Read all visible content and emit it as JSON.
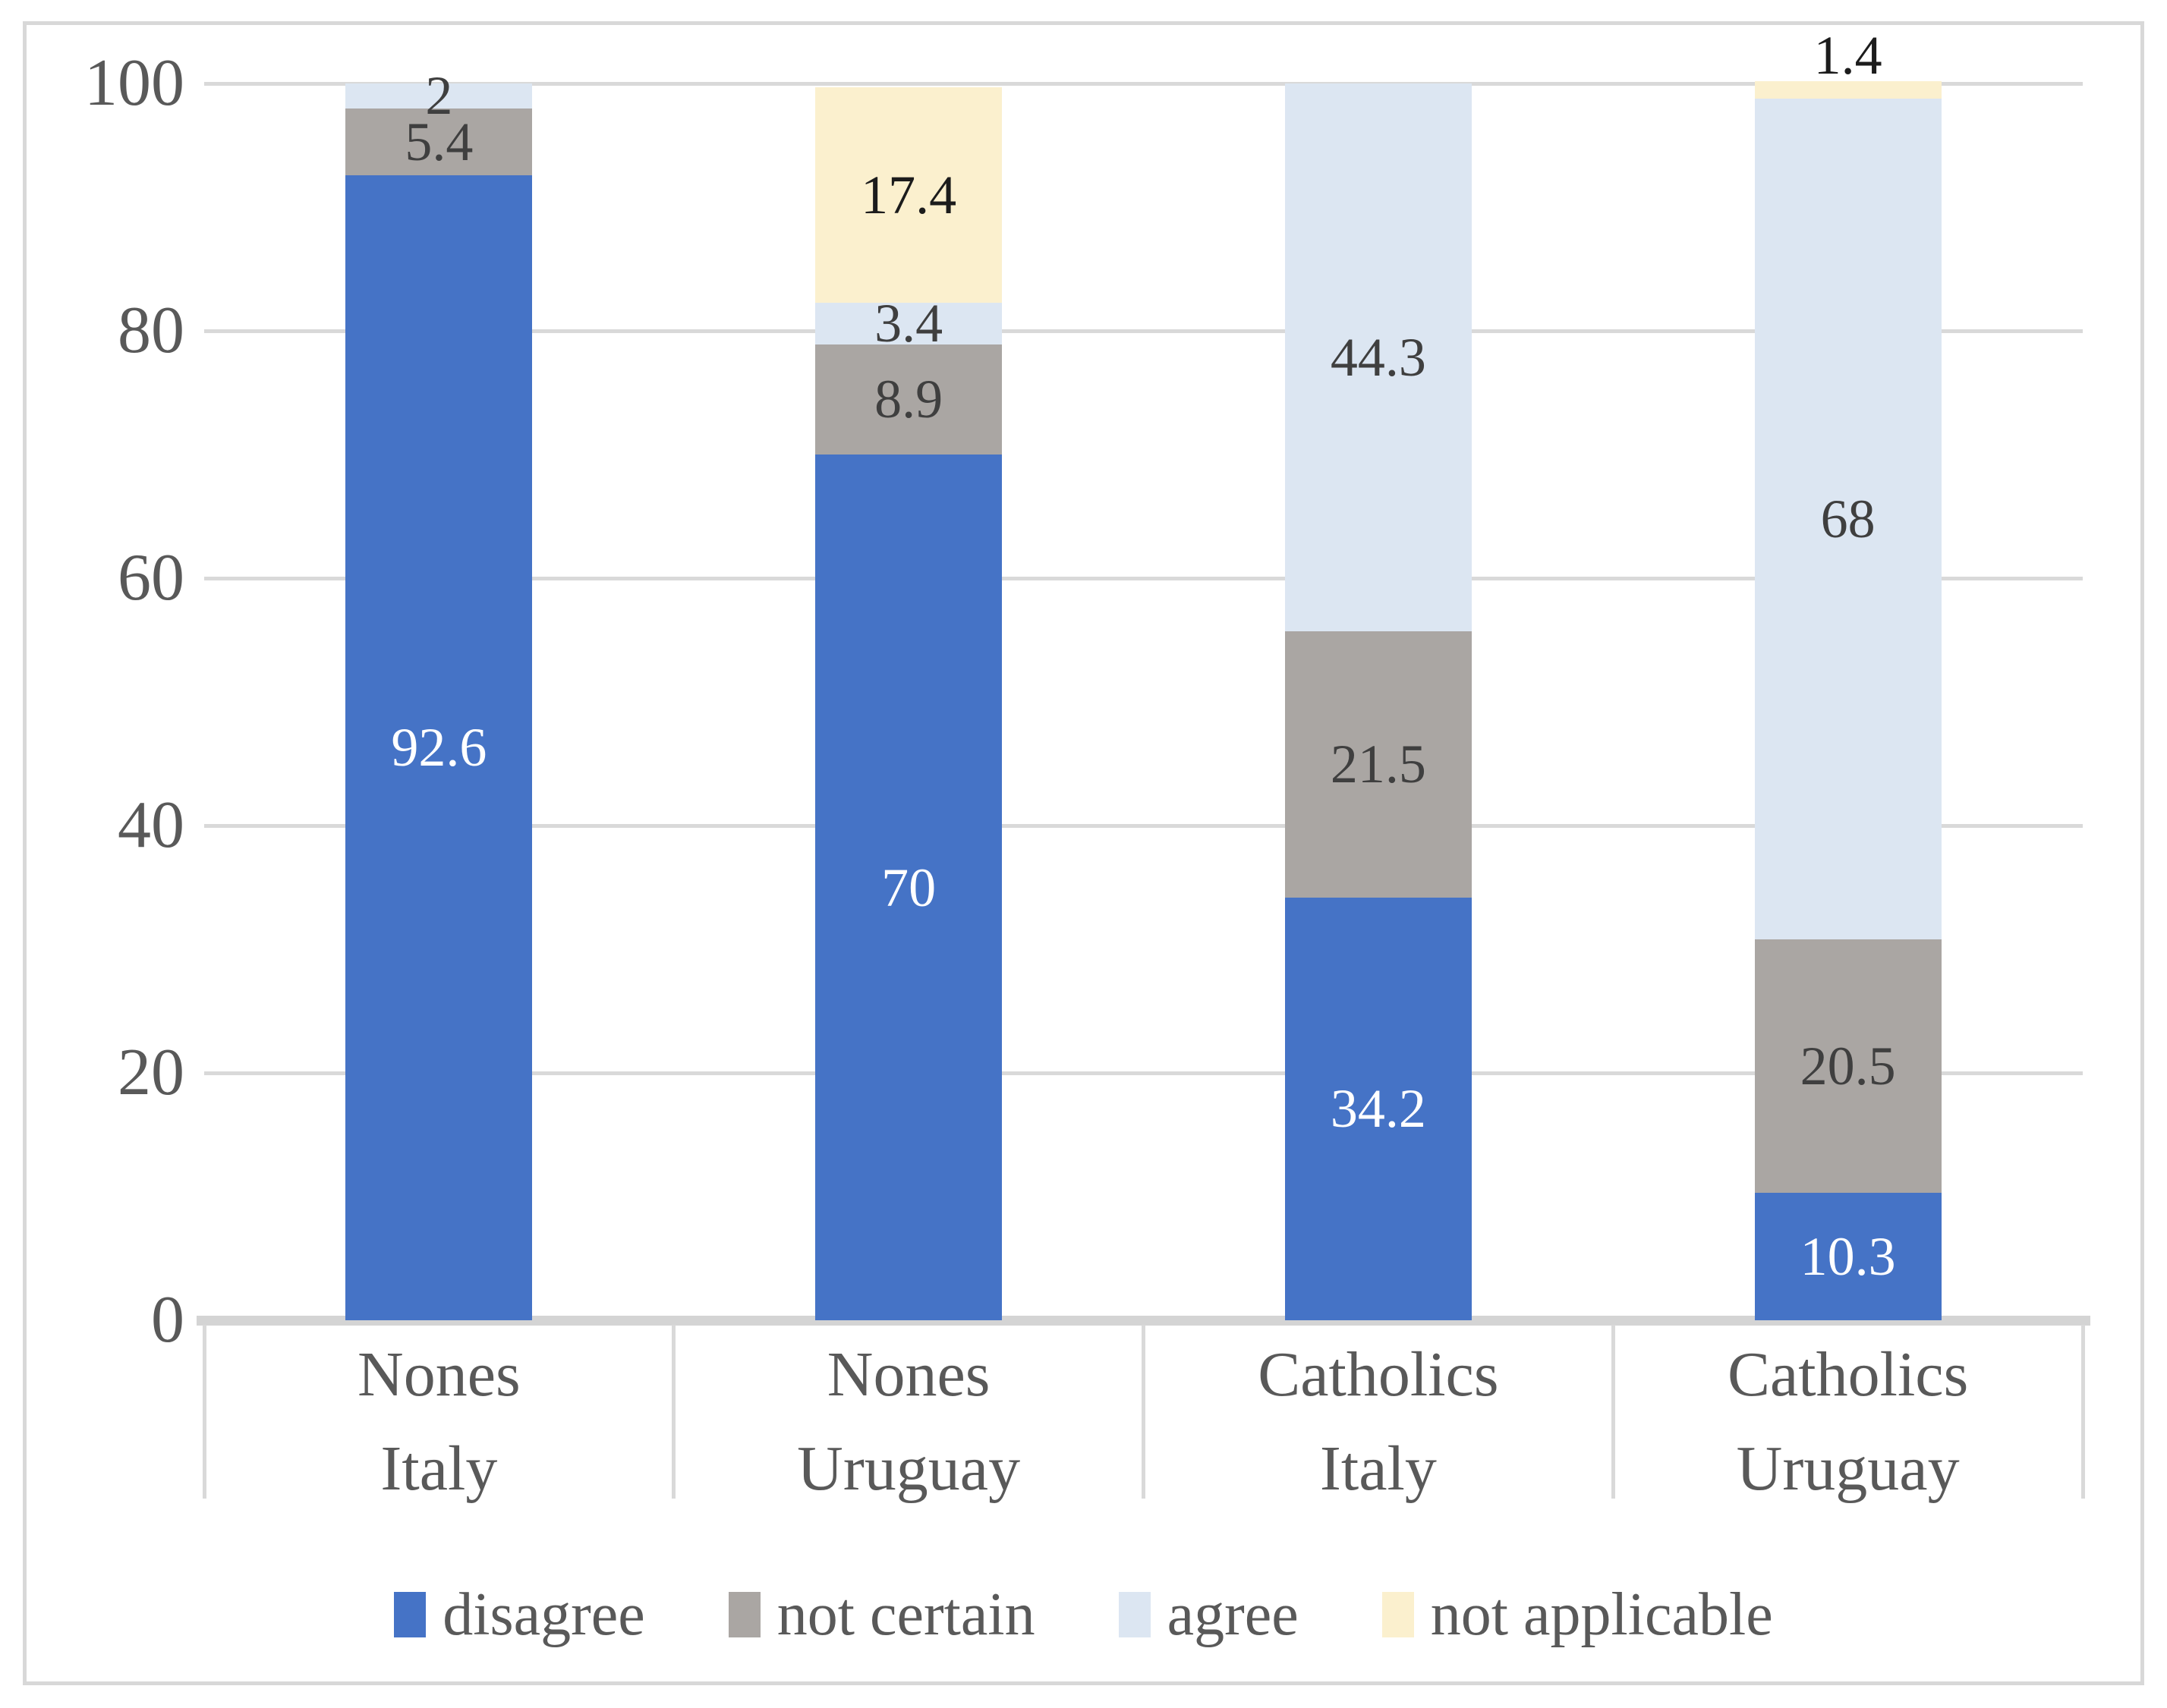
{
  "figure": {
    "background_color": "#FFFFFF",
    "border_color": "#D8D8D8",
    "grid_color": "#D9D9D9",
    "axis_text_color": "#595959"
  },
  "chart_data": {
    "type": "bar",
    "stacked": true,
    "orientation": "vertical",
    "title": "",
    "xlabel": "",
    "ylabel": "",
    "ylim": [
      0,
      100
    ],
    "yticks": [
      0,
      20,
      40,
      60,
      80,
      100
    ],
    "grid": true,
    "legend_position": "bottom",
    "categories": [
      {
        "group": "Nones",
        "country": "Italy"
      },
      {
        "group": "Nones",
        "country": "Uruguay"
      },
      {
        "group": "Catholics",
        "country": "Italy"
      },
      {
        "group": "Catholics",
        "country": "Uruguay"
      }
    ],
    "series": [
      {
        "name": "disagree",
        "color": "#4573C6",
        "label_color": "#FFFFFF",
        "values": [
          92.6,
          70,
          34.2,
          10.3
        ]
      },
      {
        "name": "not certain",
        "color": "#AAA6A3",
        "label_color": "#3F3F3F",
        "values": [
          5.4,
          8.9,
          21.5,
          20.5
        ]
      },
      {
        "name": "agree",
        "color": "#DCE6F2",
        "label_color": "#3F3F3F",
        "values": [
          2,
          3.4,
          44.3,
          68
        ]
      },
      {
        "name": "not applicable",
        "color": "#FBF0CE",
        "label_color": "#1C1C1C",
        "values": [
          0,
          17.4,
          0,
          1.4
        ]
      }
    ]
  }
}
